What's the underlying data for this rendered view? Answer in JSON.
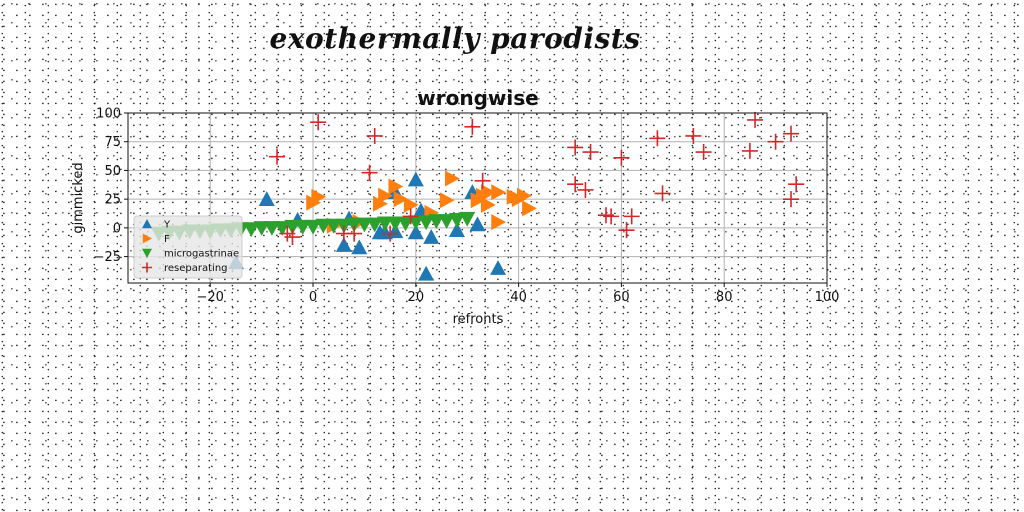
{
  "suptitle": "exothermally parodists",
  "chart_data": {
    "type": "scatter",
    "title": "wrongwise",
    "xlabel": "refronts",
    "ylabel": "gimmicked",
    "xlim": [
      -36,
      100
    ],
    "ylim": [
      -48,
      100
    ],
    "xticks": [
      -20,
      0,
      20,
      40,
      60,
      80,
      100
    ],
    "yticks": [
      -25,
      0,
      25,
      50,
      75,
      100
    ],
    "grid": true,
    "legend_position": "lower left",
    "series": [
      {
        "name": "Y",
        "marker": "triangle-up",
        "color": "#1f77b4",
        "x": [
          -15,
          -9,
          -3,
          6,
          7,
          9,
          13,
          14,
          16,
          16,
          20,
          20,
          21,
          22,
          23,
          28,
          31,
          32,
          36
        ],
        "y": [
          -30,
          25,
          7,
          -15,
          8,
          -17,
          -4,
          -4,
          -3,
          31,
          42,
          -4,
          15,
          -40,
          -8,
          -2,
          31,
          3,
          -35
        ]
      },
      {
        "name": "F",
        "marker": "triangle-right",
        "color": "#ff7f0e",
        "x": [
          0,
          1,
          4,
          9,
          13,
          14,
          16,
          17,
          19,
          23,
          26,
          27,
          32,
          34,
          34,
          36,
          36,
          39,
          40,
          41,
          42,
          33
        ],
        "y": [
          22,
          27,
          2,
          5,
          21,
          28,
          36,
          25,
          20,
          13,
          24,
          43,
          24,
          20,
          31,
          31,
          5,
          27,
          25,
          28,
          17,
          28
        ]
      },
      {
        "name": "microgastrinae",
        "marker": "triangle-down",
        "color": "#2ca02c",
        "x": [
          -30,
          -28,
          -26,
          -24,
          -22,
          -20,
          -18,
          -16,
          -14,
          -12,
          -10,
          -8,
          -6,
          -4,
          -2,
          0,
          2,
          4,
          6,
          8,
          10,
          12,
          14,
          16,
          18,
          20,
          22,
          24,
          26,
          28,
          30
        ],
        "y": [
          -5,
          -4,
          -4,
          -3,
          -3,
          -3,
          -2,
          -2,
          -1,
          -1,
          0,
          0,
          0,
          1,
          1,
          1,
          2,
          2,
          2,
          3,
          3,
          3,
          4,
          4,
          4,
          5,
          5,
          6,
          6,
          7,
          8
        ]
      },
      {
        "name": "reseparating",
        "marker": "plus",
        "color": "#d62728",
        "x": [
          1,
          12,
          31,
          51,
          54,
          60,
          67,
          74,
          76,
          85,
          86,
          90,
          93,
          -7,
          -5,
          -4,
          6,
          8,
          11,
          15,
          19,
          33,
          51,
          53,
          57,
          58,
          61,
          62,
          68,
          93,
          94
        ],
        "y": [
          92,
          80,
          88,
          70,
          66,
          61,
          78,
          80,
          66,
          67,
          94,
          75,
          82,
          62,
          -5,
          -8,
          -5,
          -5,
          48,
          -5,
          10,
          41,
          38,
          33,
          11,
          10,
          -2,
          10,
          30,
          25,
          38
        ]
      }
    ]
  }
}
